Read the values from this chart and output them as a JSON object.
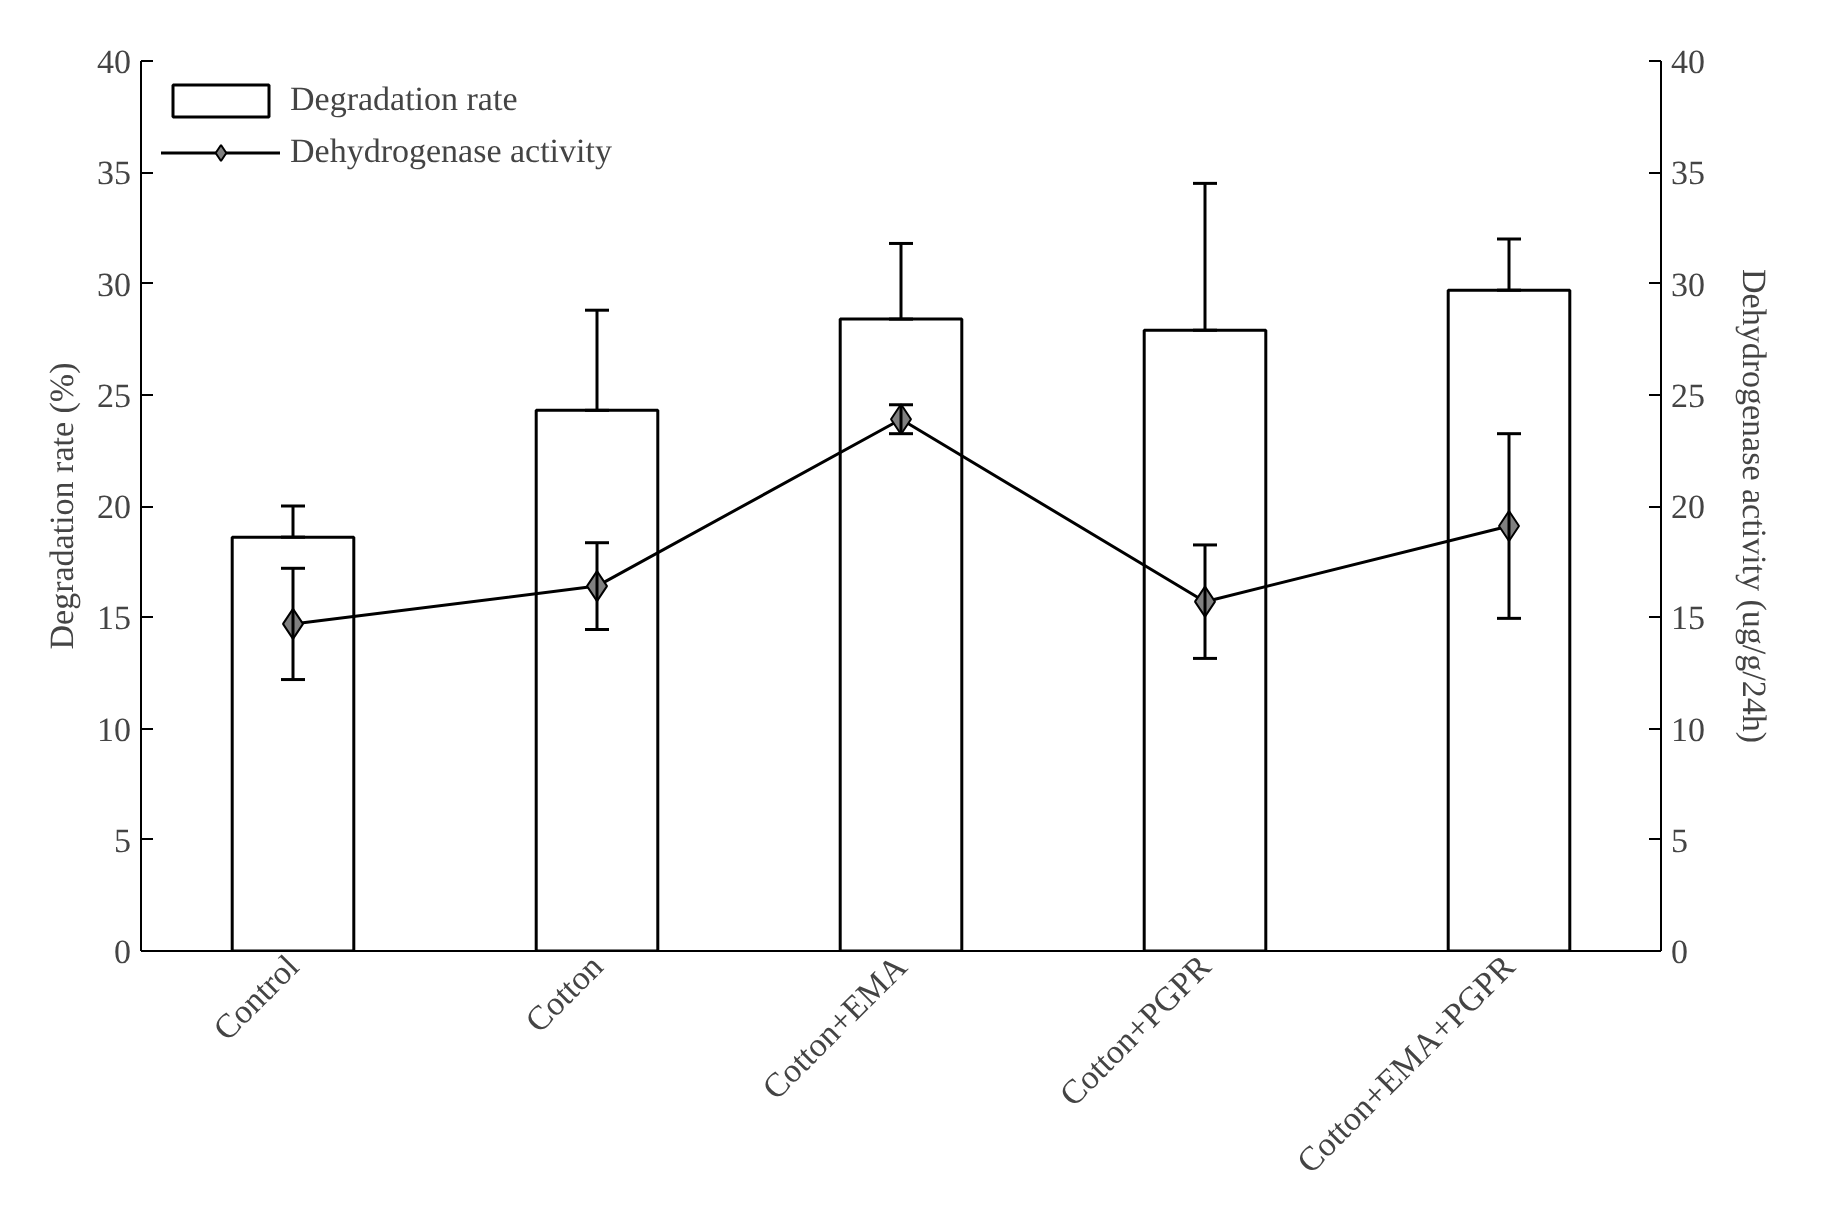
{
  "chart_data": {
    "type": "bar",
    "xlabel": null,
    "ylabel": "Degradation rate (%)",
    "y2label": "Dehydrogenase activity (ug/g/24h)",
    "categories": [
      "Control",
      "Cotton",
      "Cotton+EMA",
      "Cotton+PGPR",
      "Cotton+EMA+PGPR"
    ],
    "series": [
      {
        "name": "Degradation rate",
        "color": "#ffffff",
        "values": [
          18.6,
          24.3,
          28.4,
          27.9,
          29.7
        ],
        "errors": [
          [
            18.6,
            20.0
          ],
          [
            24.3,
            28.8
          ],
          [
            28.4,
            31.8
          ],
          [
            27.9,
            34.5
          ],
          [
            29.7,
            32.0
          ]
        ]
      },
      {
        "name": "Dehydrogenase activity",
        "type": "line",
        "axis": "y2",
        "color": "#808080",
        "marker": "diamond",
        "values": [
          14.7,
          16.4,
          23.9,
          15.7,
          19.1
        ],
        "errors": [
          2.5,
          1.95,
          0.65,
          2.55,
          4.15
        ]
      }
    ],
    "ylim": [
      0,
      40
    ],
    "yticks": [
      0,
      5,
      10,
      15,
      20,
      25,
      30,
      35,
      40
    ],
    "y2lim": [
      0,
      40
    ],
    "y2ticks": [
      0,
      5,
      10,
      15,
      20,
      25,
      30,
      35,
      40
    ],
    "grid": false,
    "legend": "top left"
  }
}
